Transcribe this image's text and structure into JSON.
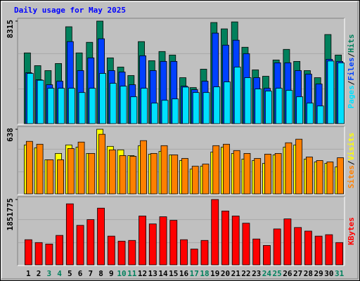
{
  "title": "Daily usage for May 2025",
  "separator": "/",
  "chart_data": [
    {
      "type": "bar",
      "ylim": [
        0,
        8315
      ],
      "yticks": [
        8315
      ],
      "series": [
        {
          "name": "Hits",
          "color": "#00805c",
          "values": [
            5752,
            4727,
            4328,
            4898,
            7859,
            5752,
            6606,
            8315,
            5353,
            4613,
            3930,
            6663,
            5126,
            5866,
            5581,
            3759,
            2961,
            4442,
            8200,
            7688,
            8250,
            6208,
            4385,
            3873,
            5183,
            6037,
            5069,
            4328,
            3759,
            7233,
            5581
          ]
        },
        {
          "name": "Files",
          "color": "#0040ff",
          "values": [
            4157,
            3588,
            3189,
            3474,
            6663,
            4328,
            5353,
            6891,
            4328,
            4214,
            3189,
            5524,
            4328,
            5069,
            5069,
            3075,
            2791,
            3474,
            7347,
            6378,
            6777,
            5695,
            3759,
            2904,
            4955,
            4955,
            4328,
            4043,
            3246,
            5239,
            5069
          ]
        },
        {
          "name": "Pages",
          "color": "#00e0ff",
          "values": [
            4100,
            3550,
            2904,
            2904,
            2904,
            2563,
            2904,
            4100,
            3303,
            3075,
            2221,
            2904,
            1709,
            1936,
            2050,
            3000,
            2563,
            2563,
            3018,
            3417,
            4613,
            3759,
            2848,
            2677,
            2904,
            2734,
            2221,
            1709,
            1481,
            5100,
            4950
          ]
        }
      ]
    },
    {
      "type": "bar",
      "ylim": [
        0,
        638
      ],
      "yticks": [
        638
      ],
      "series": [
        {
          "name": "Visits",
          "color": "#ffff00",
          "values": [
            485,
            457,
            340,
            402,
            485,
            464,
            402,
            638,
            471,
            437,
            381,
            478,
            395,
            423,
            388,
            333,
            249,
            277,
            416,
            464,
            402,
            347,
            333,
            305,
            388,
            464,
            485,
            347,
            319,
            305,
            270
          ]
        },
        {
          "name": "Sites",
          "color": "#ff8000",
          "values": [
            520,
            492,
            340,
            340,
            450,
            513,
            402,
            589,
            437,
            381,
            374,
            527,
            402,
            478,
            388,
            353,
            277,
            298,
            478,
            492,
            430,
            402,
            353,
            395,
            402,
            506,
            541,
            367,
            333,
            319,
            360
          ]
        }
      ]
    },
    {
      "type": "bar",
      "ylim": [
        0,
        1851775
      ],
      "yticks": [
        1851775
      ],
      "series": [
        {
          "name": "KBytes",
          "color": "#ff0000",
          "values": [
            724608,
            644096,
            603840,
            845376,
            1731008,
            1127168,
            1288192,
            1610240,
            825248,
            684352,
            704480,
            1388832,
            1167424,
            1368704,
            1268064,
            724608,
            462944,
            704480,
            1851775,
            1529728,
            1388832,
            1187552,
            744736,
            563584,
            1026528,
            1308320,
            1066784,
            966144,
            825248,
            865504,
            644096
          ]
        }
      ],
      "categories": [
        "1",
        "2",
        "3",
        "4",
        "5",
        "6",
        "7",
        "8",
        "9",
        "10",
        "11",
        "12",
        "13",
        "14",
        "15",
        "16",
        "17",
        "18",
        "19",
        "20",
        "21",
        "22",
        "23",
        "24",
        "25",
        "26",
        "27",
        "28",
        "29",
        "30",
        "31"
      ],
      "category_colors": [
        "#000000",
        "#000000",
        "#00805c",
        "#00805c",
        "#000000",
        "#000000",
        "#000000",
        "#000000",
        "#000000",
        "#00805c",
        "#00805c",
        "#000000",
        "#000000",
        "#000000",
        "#000000",
        "#000000",
        "#00805c",
        "#00805c",
        "#000000",
        "#000000",
        "#000000",
        "#000000",
        "#000000",
        "#00805c",
        "#00805c",
        "#000000",
        "#000000",
        "#000000",
        "#000000",
        "#000000",
        "#00805c"
      ]
    }
  ]
}
